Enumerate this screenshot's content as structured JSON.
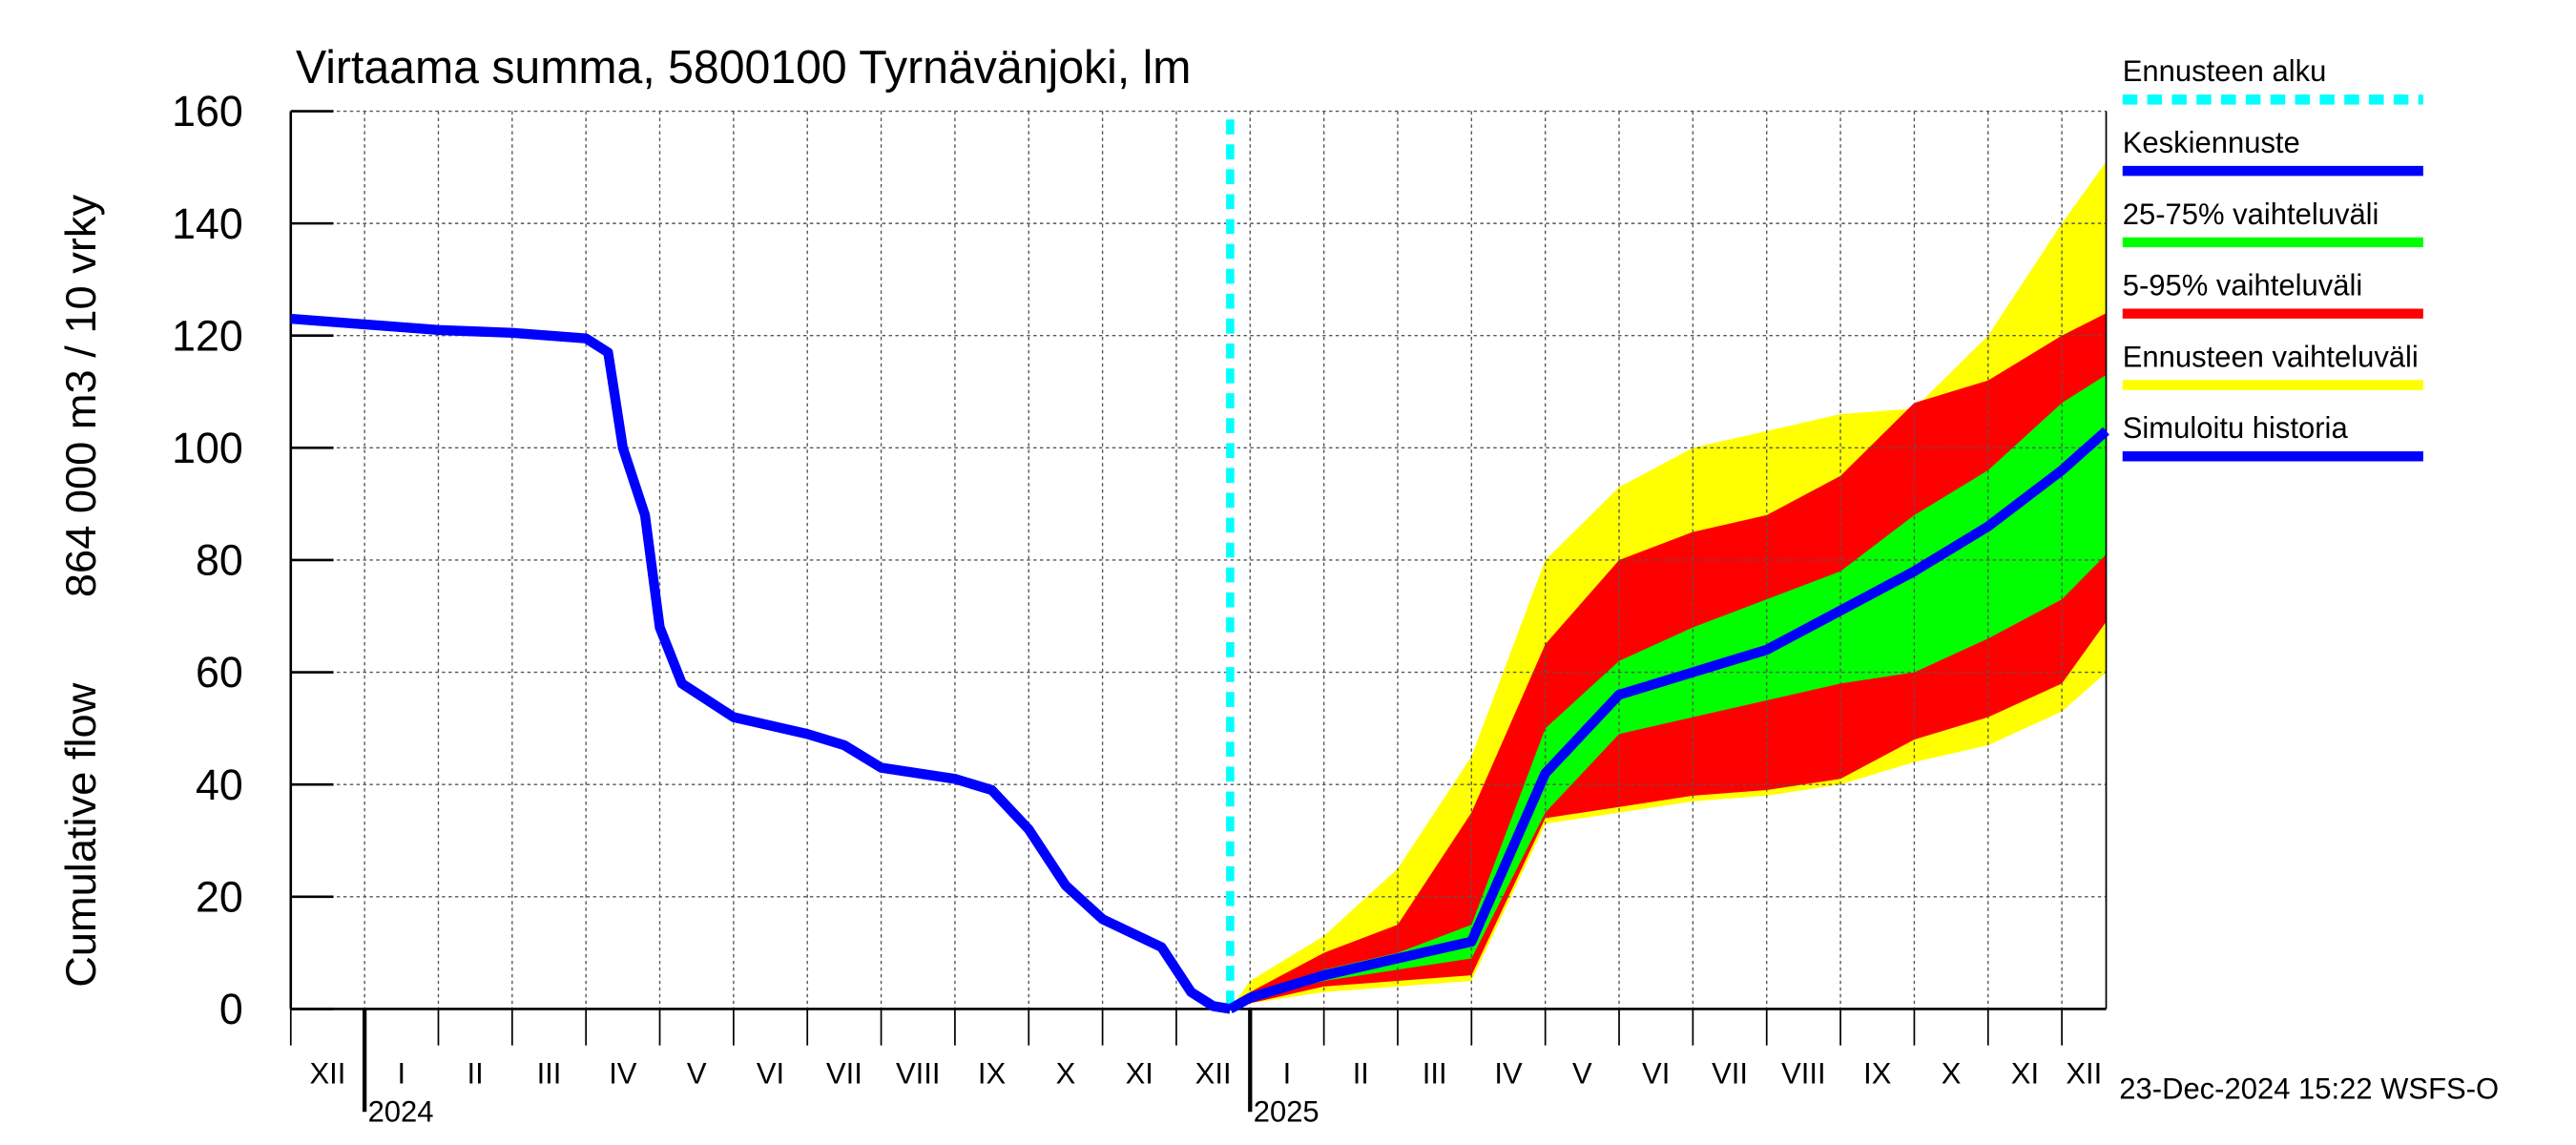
{
  "chart_data": {
    "type": "line",
    "title": "Virtaama summa, 5800100 Tyrnävänjoki, lm",
    "ylabel": [
      "Cumulative flow",
      "864 000 m3 / 10 vrky"
    ],
    "ylim": [
      0,
      160
    ],
    "yticks": [
      0,
      20,
      40,
      60,
      80,
      100,
      120,
      140,
      160
    ],
    "grid": true,
    "xlim": [
      0,
      24.6
    ],
    "month_labels": [
      "XII",
      "I",
      "II",
      "III",
      "IV",
      "V",
      "VI",
      "VII",
      "VIII",
      "IX",
      "X",
      "XI",
      "XII",
      "I",
      "II",
      "III",
      "IV",
      "V",
      "VI",
      "VII",
      "VIII",
      "IX",
      "X",
      "XI",
      "XII"
    ],
    "years": [
      {
        "label": "2024",
        "x": 1
      },
      {
        "label": "2025",
        "x": 13
      }
    ],
    "forecast_start": {
      "name": "Ennusteen alku",
      "color": "#00ffff",
      "x": 12.73
    },
    "series": [
      {
        "name": "Keskiennuste",
        "color": "#0000ff",
        "x": [
          12.73,
          13,
          14,
          15,
          16,
          17,
          18,
          19,
          20,
          21,
          22,
          23,
          24,
          24.6
        ],
        "values": [
          0,
          2,
          6,
          9,
          12,
          42,
          56,
          60,
          64,
          71,
          78,
          86,
          96,
          103
        ]
      },
      {
        "name": "Simuloitu historia",
        "color": "#0000ff",
        "x": [
          0,
          1,
          2,
          3,
          4,
          4.3,
          4.5,
          4.8,
          5,
          5.3,
          6,
          7,
          7.5,
          8,
          9,
          9.5,
          10,
          10.5,
          11,
          11.8,
          12.2,
          12.5,
          12.73
        ],
        "values": [
          123,
          122,
          121,
          120.5,
          119.5,
          117,
          100,
          88,
          68,
          58,
          52,
          49,
          47,
          43,
          41,
          39,
          32,
          22,
          16,
          11,
          3,
          0.5,
          0
        ]
      }
    ],
    "band_x": [
      12.73,
      13,
      14,
      15,
      16,
      17,
      18,
      19,
      20,
      21,
      22,
      23,
      24,
      24.6
    ],
    "bands": [
      {
        "name": "Ennusteen vaihteluväli",
        "color": "#ffff00",
        "high": [
          0,
          5,
          13,
          25,
          45,
          80,
          93,
          100,
          103,
          106,
          107,
          120,
          140,
          151
        ],
        "low": [
          0,
          1,
          3,
          4,
          5,
          33,
          35,
          37,
          38,
          40,
          44,
          47,
          53,
          60
        ]
      },
      {
        "name": "5-95% vaihteluväli",
        "color": "#ff0000",
        "high": [
          0,
          3,
          10,
          15,
          35,
          65,
          80,
          85,
          88,
          95,
          108,
          112,
          120,
          124
        ],
        "low": [
          0,
          1,
          4,
          5,
          6,
          34,
          36,
          38,
          39,
          41,
          48,
          52,
          58,
          69
        ]
      },
      {
        "name": "25-75% vaihteluväli",
        "color": "#00ff00",
        "high": [
          0,
          2,
          7,
          10,
          15,
          50,
          62,
          68,
          73,
          78,
          88,
          96,
          108,
          113
        ],
        "low": [
          0,
          1.5,
          5,
          7,
          9,
          35,
          49,
          52,
          55,
          58,
          60,
          66,
          73,
          81
        ]
      }
    ],
    "timestamp": "23-Dec-2024 15:22 WSFS-O"
  }
}
